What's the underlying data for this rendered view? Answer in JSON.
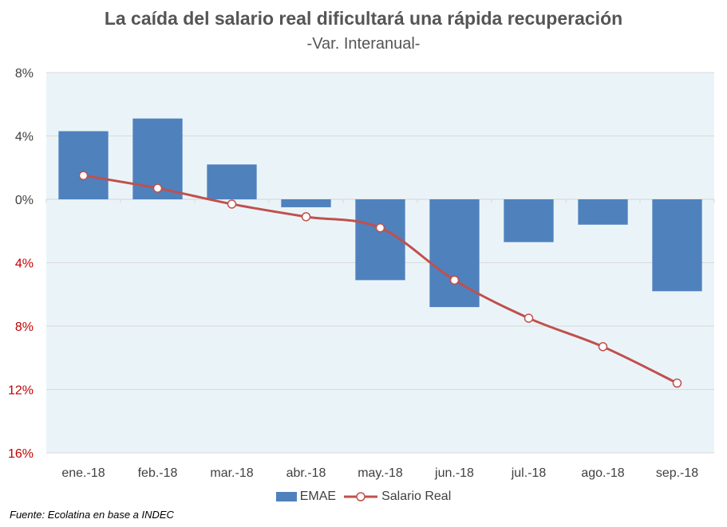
{
  "title": "La caída del salario real dificultará una rápida recuperación",
  "subtitle": "-Var. Interanual-",
  "source": "Fuente: Ecolatina en base a INDEC",
  "colors": {
    "plot_background": "#EAF4F8",
    "bar": "#4F81BD",
    "line": "#C0504D",
    "negative_tick": "#C00000",
    "positive_tick": "#404040",
    "grid": "#D9D9D9"
  },
  "chart_data": {
    "type": "bar",
    "categories": [
      "ene.-18",
      "feb.-18",
      "mar.-18",
      "abr.-18",
      "may.-18",
      "jun.-18",
      "jul.-18",
      "ago.-18",
      "sep.-18"
    ],
    "series": [
      {
        "name": "EMAE",
        "type": "bar",
        "values": [
          4.3,
          5.1,
          2.2,
          -0.5,
          -5.1,
          -6.8,
          -2.7,
          -1.6,
          -5.8
        ]
      },
      {
        "name": "Salario Real",
        "type": "line",
        "values": [
          1.5,
          0.7,
          -0.3,
          -1.1,
          -1.8,
          -5.1,
          -7.5,
          -9.3,
          -11.6
        ]
      }
    ],
    "ylim": [
      -16,
      8
    ],
    "yticks": [
      8,
      4,
      0,
      -4,
      -8,
      -12,
      -16
    ],
    "ytick_labels": [
      "8%",
      "4%",
      "0%",
      "4%",
      "8%",
      "12%",
      "16%"
    ],
    "grid": true,
    "legend_position": "bottom"
  }
}
